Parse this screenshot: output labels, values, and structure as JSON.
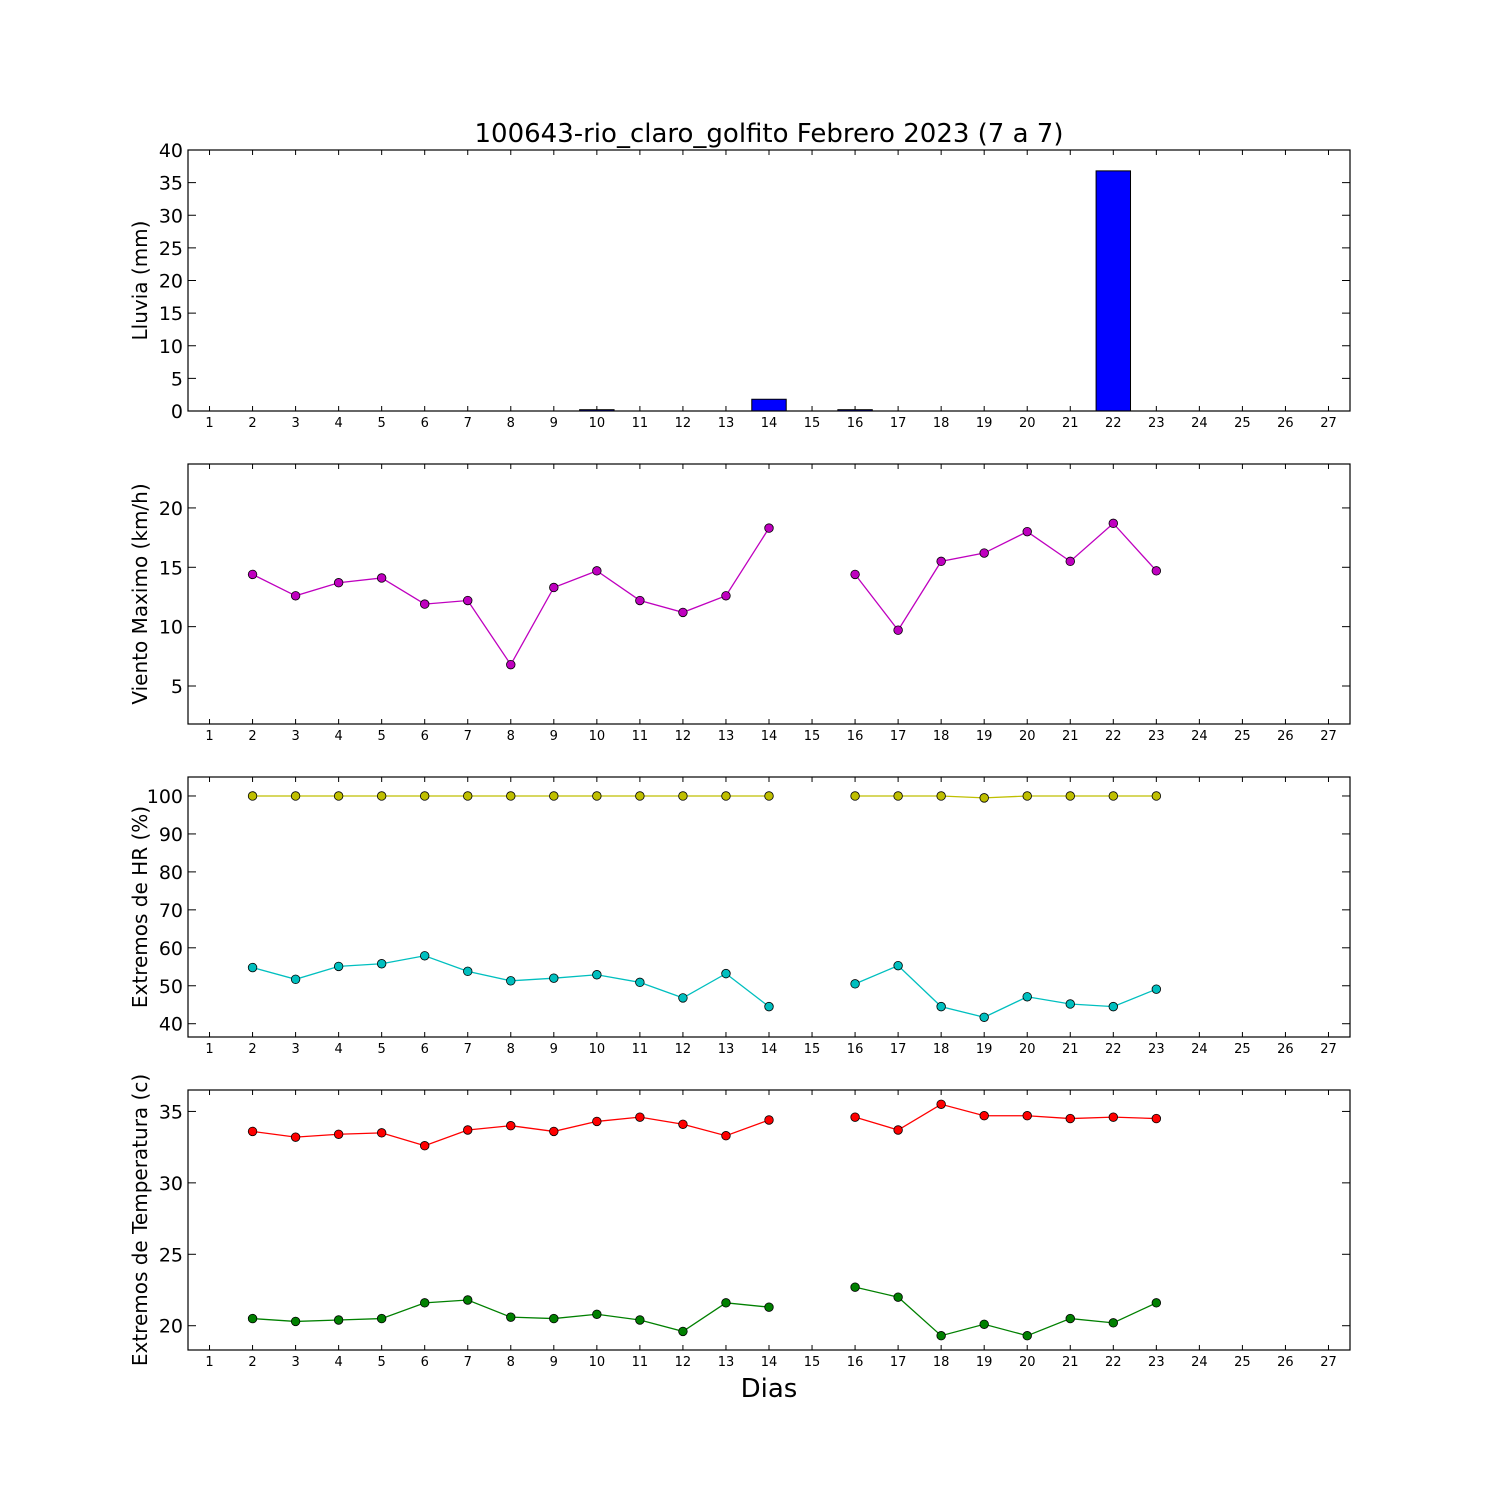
{
  "chart_data": [
    {
      "type": "bar",
      "title": "100643-rio_claro_golfito Febrero 2023  (7 a 7)",
      "ylabel": "Lluvia (mm)",
      "xlabel": "",
      "ylim": [
        0,
        40
      ],
      "yticks": [
        0,
        5,
        10,
        15,
        20,
        25,
        30,
        35,
        40
      ],
      "xticks": [
        1,
        2,
        3,
        4,
        5,
        6,
        7,
        8,
        9,
        10,
        11,
        12,
        13,
        14,
        15,
        16,
        17,
        18,
        19,
        20,
        21,
        22,
        23,
        24,
        25,
        26,
        27
      ],
      "x": [
        2,
        3,
        4,
        5,
        6,
        7,
        8,
        9,
        10,
        11,
        12,
        13,
        14,
        16,
        17,
        18,
        19,
        20,
        21,
        22
      ],
      "values": [
        0,
        0,
        0,
        0,
        0,
        0,
        0,
        0,
        0.2,
        0,
        0,
        0,
        1.8,
        0.2,
        0,
        0,
        0,
        0,
        0,
        36.8
      ],
      "color": "#0000ff"
    },
    {
      "type": "line",
      "ylabel": "Viento Maximo (km/h)",
      "ylim": [
        1.8,
        23.7
      ],
      "yticks": [
        5,
        10,
        15,
        20
      ],
      "xticks": [
        1,
        2,
        3,
        4,
        5,
        6,
        7,
        8,
        9,
        10,
        11,
        12,
        13,
        14,
        15,
        16,
        17,
        18,
        19,
        20,
        21,
        22,
        23,
        24,
        25,
        26,
        27
      ],
      "series": [
        {
          "color": "#bf00bf",
          "x": [
            2,
            3,
            4,
            5,
            6,
            7,
            8,
            9,
            10,
            11,
            12,
            13,
            14,
            null,
            16,
            17,
            18,
            19,
            20,
            21,
            22,
            23
          ],
          "values": [
            14.4,
            12.6,
            13.7,
            14.1,
            11.9,
            12.2,
            6.8,
            13.3,
            14.7,
            12.2,
            11.2,
            12.6,
            18.3,
            null,
            14.4,
            9.7,
            15.5,
            16.2,
            18.0,
            15.5,
            18.7,
            14.7
          ]
        }
      ]
    },
    {
      "type": "line",
      "ylabel": "Extremos de HR (%)",
      "ylim": [
        36.5,
        105
      ],
      "yticks": [
        40,
        50,
        60,
        70,
        80,
        90,
        100
      ],
      "xticks": [
        1,
        2,
        3,
        4,
        5,
        6,
        7,
        8,
        9,
        10,
        11,
        12,
        13,
        14,
        15,
        16,
        17,
        18,
        19,
        20,
        21,
        22,
        23,
        24,
        25,
        26,
        27
      ],
      "series": [
        {
          "color": "#bfbf00",
          "x": [
            2,
            3,
            4,
            5,
            6,
            7,
            8,
            9,
            10,
            11,
            12,
            13,
            14,
            null,
            16,
            17,
            18,
            19,
            20,
            21,
            22,
            23
          ],
          "values": [
            100,
            100,
            100,
            100,
            100,
            100,
            100,
            100,
            100,
            100,
            100,
            100,
            100,
            null,
            100,
            100,
            100,
            99.5,
            100,
            100,
            100,
            100
          ]
        },
        {
          "color": "#00bfbf",
          "x": [
            2,
            3,
            4,
            5,
            6,
            7,
            8,
            9,
            10,
            11,
            12,
            13,
            14,
            null,
            16,
            17,
            18,
            19,
            20,
            21,
            22,
            23
          ],
          "values": [
            54.8,
            51.7,
            55.1,
            55.8,
            57.9,
            53.8,
            51.3,
            52.0,
            52.9,
            50.9,
            46.8,
            53.2,
            44.5,
            null,
            50.5,
            55.3,
            44.5,
            41.7,
            47.1,
            45.2,
            44.5,
            49.1
          ]
        }
      ]
    },
    {
      "type": "line",
      "ylabel": "Extremos de Temperatura (c)",
      "xlabel": "Dias",
      "ylim": [
        18.3,
        36.5
      ],
      "yticks": [
        20,
        25,
        30,
        35
      ],
      "xticks": [
        1,
        2,
        3,
        4,
        5,
        6,
        7,
        8,
        9,
        10,
        11,
        12,
        13,
        14,
        15,
        16,
        17,
        18,
        19,
        20,
        21,
        22,
        23,
        24,
        25,
        26,
        27
      ],
      "series": [
        {
          "color": "#ff0000",
          "x": [
            2,
            3,
            4,
            5,
            6,
            7,
            8,
            9,
            10,
            11,
            12,
            13,
            14,
            null,
            16,
            17,
            18,
            19,
            20,
            21,
            22,
            23
          ],
          "values": [
            33.6,
            33.2,
            33.4,
            33.5,
            32.6,
            33.7,
            34.0,
            33.6,
            34.3,
            34.6,
            34.1,
            33.3,
            34.4,
            null,
            34.6,
            33.7,
            35.5,
            34.7,
            34.7,
            34.5,
            34.6,
            34.5
          ]
        },
        {
          "color": "#008000",
          "x": [
            2,
            3,
            4,
            5,
            6,
            7,
            8,
            9,
            10,
            11,
            12,
            13,
            14,
            null,
            16,
            17,
            18,
            19,
            20,
            21,
            22,
            23
          ],
          "values": [
            20.5,
            20.3,
            20.4,
            20.5,
            21.6,
            21.8,
            20.6,
            20.5,
            20.8,
            20.4,
            19.6,
            21.6,
            21.3,
            null,
            22.7,
            22.0,
            19.3,
            20.1,
            19.3,
            20.5,
            20.2,
            21.6
          ]
        }
      ]
    }
  ]
}
